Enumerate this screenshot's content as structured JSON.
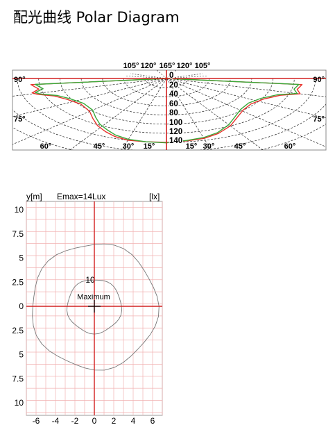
{
  "page": {
    "title": "配光曲线 Polar Diagram"
  },
  "chart_data": [
    {
      "type": "polar-line",
      "title": "",
      "top_angle_labels": [
        "105°",
        "120°",
        "165°",
        "120°",
        "105°"
      ],
      "left_edge_labels": [
        "90°",
        "75°"
      ],
      "right_edge_labels": [
        "90°",
        "75°"
      ],
      "bottom_angle_labels": [
        "60°",
        "45°",
        "30°",
        "15°",
        "15°",
        "30°",
        "45°",
        "60°"
      ],
      "radial_labels": [
        "0",
        "20",
        "40",
        "60",
        "80",
        "100",
        "120",
        "140"
      ],
      "radial_range": [
        0,
        140
      ],
      "grid": true,
      "line_colors": {
        "series_a": "#e8302a",
        "series_b": "#3aa93a",
        "axes": "#d22020"
      },
      "series": [
        {
          "color": "#e8302a",
          "points": [
            [
              -84,
              128
            ],
            [
              -79,
              122
            ],
            [
              -76,
              130
            ],
            [
              -74,
              126
            ],
            [
              -70,
              112
            ],
            [
              -64,
              104
            ],
            [
              -55,
              98
            ],
            [
              -45,
              102
            ],
            [
              -38,
              112
            ],
            [
              -32,
              122
            ],
            [
              -26,
              130
            ],
            [
              -21,
              136
            ],
            [
              -15,
              140
            ],
            [
              -8,
              140
            ],
            [
              0,
              140
            ],
            [
              8,
              138
            ],
            [
              15,
              136
            ],
            [
              22,
              130
            ],
            [
              30,
              120
            ],
            [
              38,
              108
            ],
            [
              46,
              100
            ],
            [
              55,
              97
            ],
            [
              64,
              102
            ],
            [
              71,
              113
            ],
            [
              75,
              130
            ],
            [
              79,
              125
            ],
            [
              84,
              128
            ]
          ]
        },
        {
          "color": "#3aa93a",
          "points": [
            [
              -84,
              124
            ],
            [
              -79,
              118
            ],
            [
              -76,
              127
            ],
            [
              -74,
              123
            ],
            [
              -70,
              109
            ],
            [
              -64,
              101
            ],
            [
              -55,
              95
            ],
            [
              -45,
              98
            ],
            [
              -38,
              108
            ],
            [
              -32,
              118
            ],
            [
              -26,
              126
            ],
            [
              -21,
              133
            ],
            [
              -15,
              138
            ],
            [
              -8,
              140
            ],
            [
              0,
              141
            ],
            [
              8,
              137
            ],
            [
              15,
              134
            ],
            [
              22,
              128
            ],
            [
              30,
              117
            ],
            [
              38,
              105
            ],
            [
              46,
              97
            ],
            [
              55,
              94
            ],
            [
              64,
              99
            ],
            [
              71,
              110
            ],
            [
              75,
              127
            ],
            [
              79,
              122
            ],
            [
              84,
              125
            ]
          ]
        }
      ]
    },
    {
      "type": "isolux",
      "title": "",
      "y_axis_label": "y[m]",
      "emax_label": "Emax=14Lux",
      "unit_label": "[lx]",
      "x_ticks": [
        "-6",
        "-4",
        "-2",
        "0",
        "2",
        "4",
        "6"
      ],
      "y_ticks": [
        "10",
        "7.5",
        "5",
        "2.5",
        "0",
        "2.5",
        "5",
        "7.5",
        "10"
      ],
      "xlim": [
        -7,
        7
      ],
      "ylim": [
        -11,
        11
      ],
      "grid": true,
      "contours": [
        {
          "level_label": "10",
          "radius_m": 2.8
        },
        {
          "level_label": "",
          "radius_m": 6.5
        }
      ],
      "maximum_label": "Maximum",
      "maximum_point": [
        0,
        0
      ]
    }
  ]
}
